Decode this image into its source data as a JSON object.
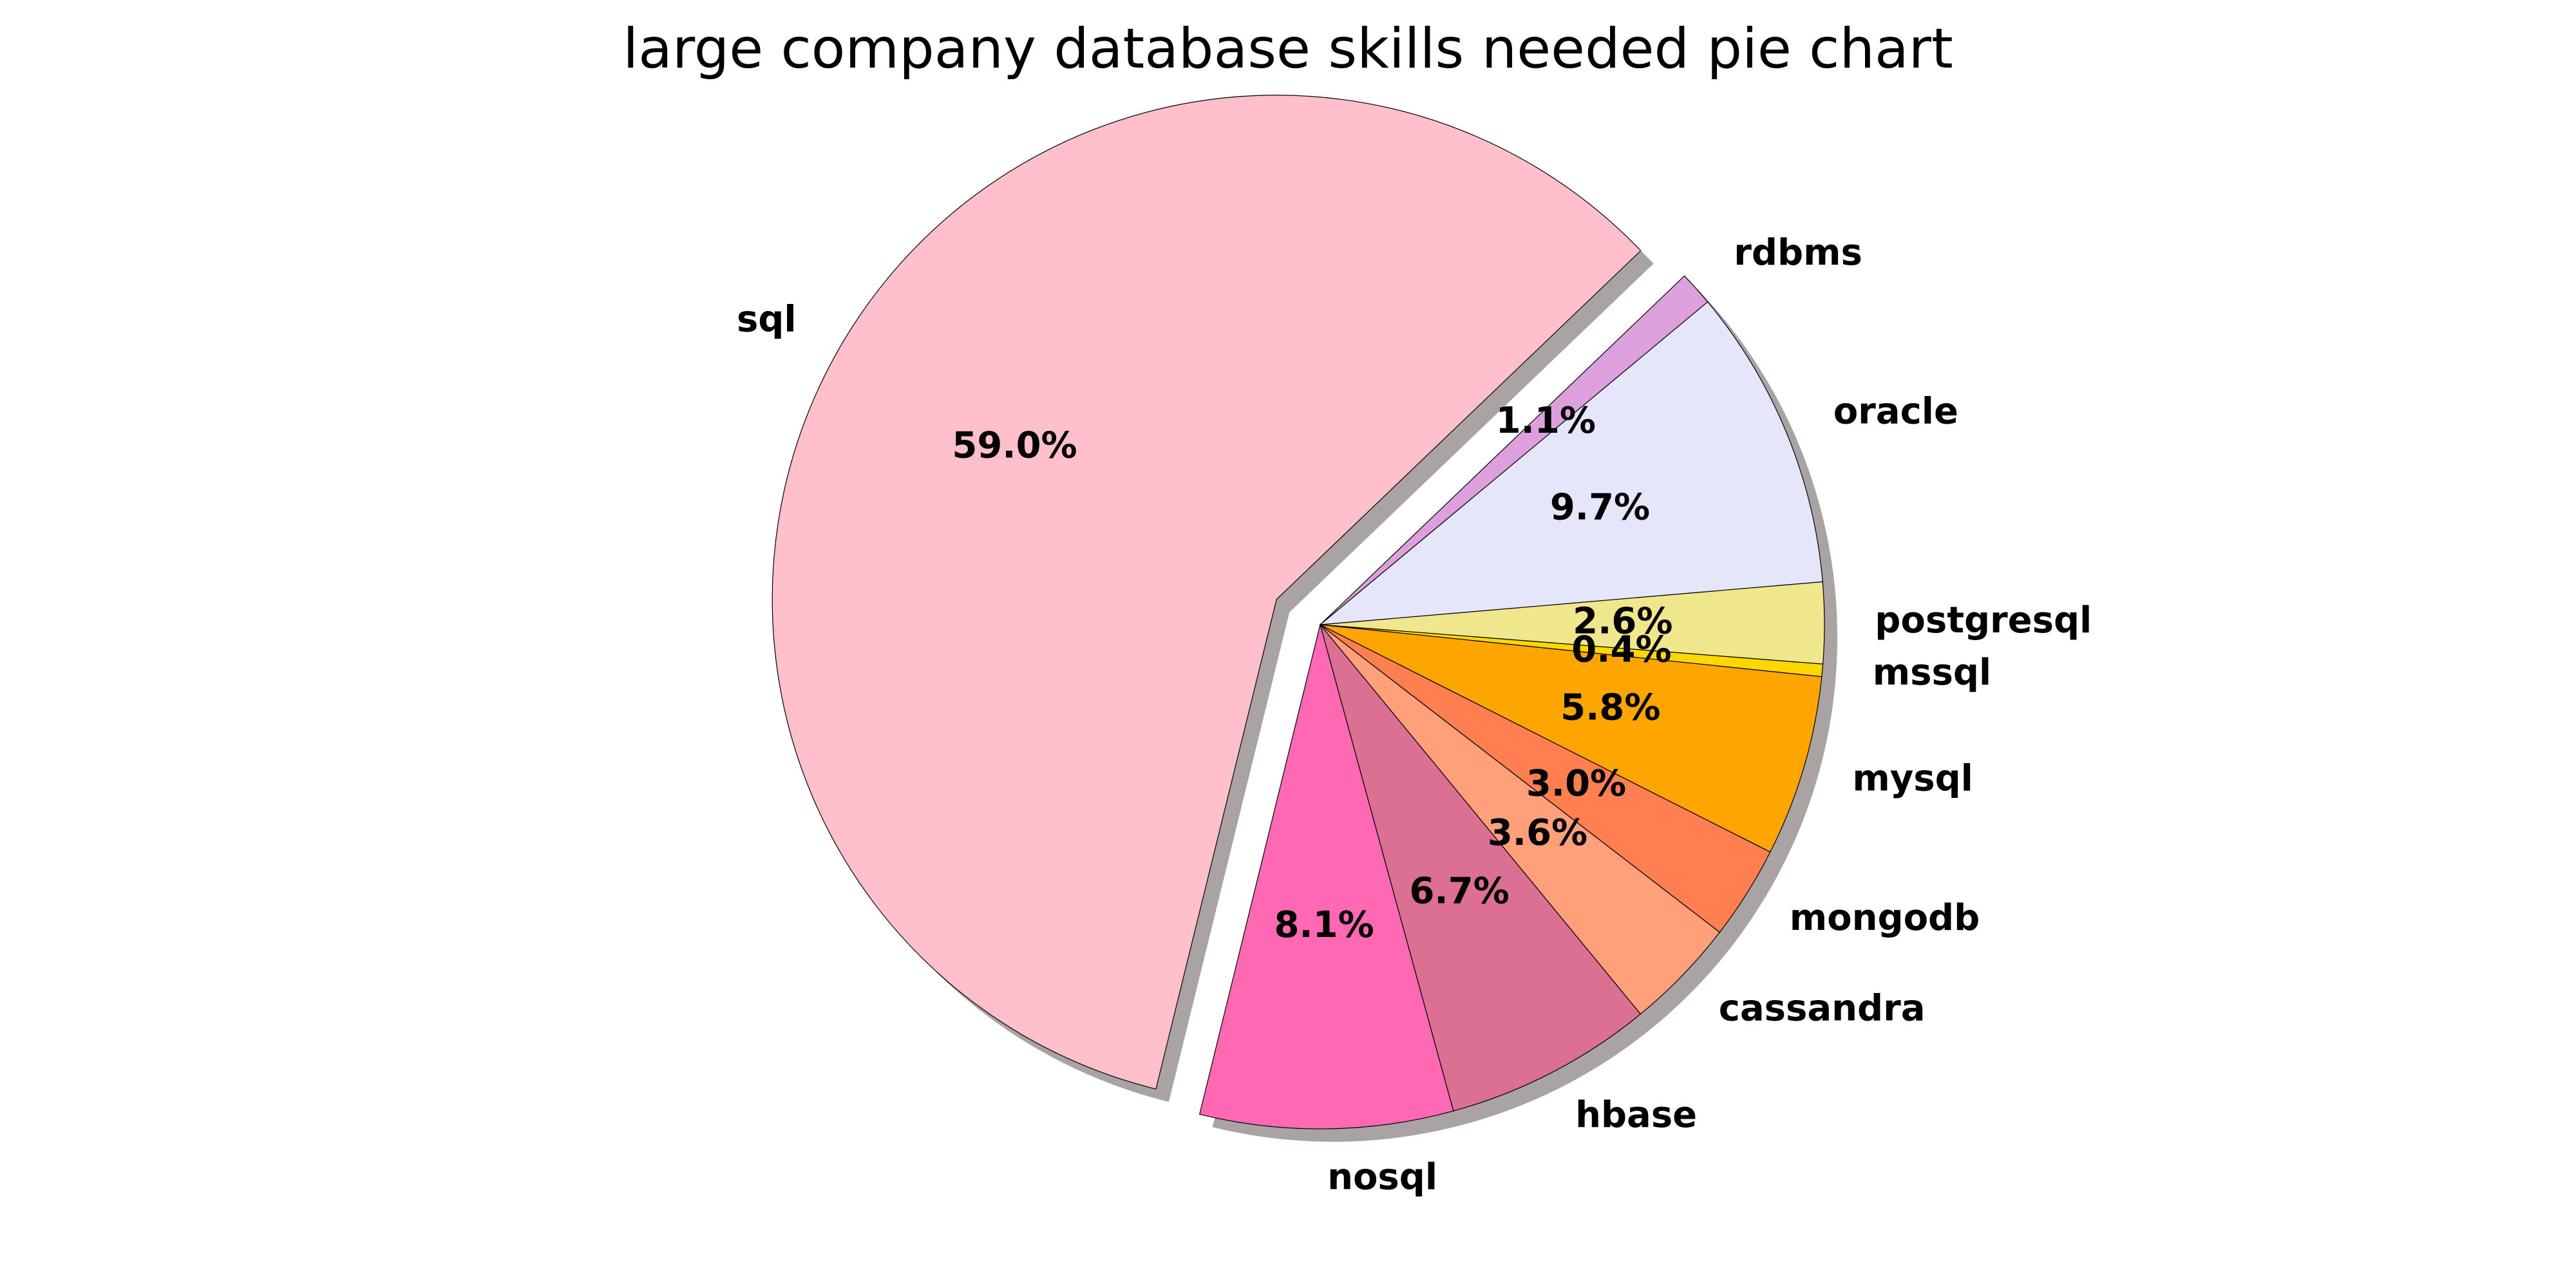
{
  "chart_data": {
    "type": "pie",
    "title": "large company database skills needed pie chart",
    "slices": [
      {
        "label": "sql",
        "percent": "59.0%",
        "value": 59.0,
        "color": "#FFC0CB",
        "explode": true
      },
      {
        "label": "nosql",
        "percent": "8.1%",
        "value": 8.1,
        "color": "#FF69B4",
        "explode": false
      },
      {
        "label": "hbase",
        "percent": "6.7%",
        "value": 6.7,
        "color": "#DB7093",
        "explode": false
      },
      {
        "label": "cassandra",
        "percent": "3.6%",
        "value": 3.6,
        "color": "#FFA07A",
        "explode": false
      },
      {
        "label": "mongodb",
        "percent": "3.0%",
        "value": 3.0,
        "color": "#FF7F50",
        "explode": false
      },
      {
        "label": "mysql",
        "percent": "5.8%",
        "value": 5.8,
        "color": "#FFA500",
        "explode": false
      },
      {
        "label": "mssql",
        "percent": "0.4%",
        "value": 0.4,
        "color": "#FFD700",
        "explode": false
      },
      {
        "label": "postgresql",
        "percent": "2.6%",
        "value": 2.6,
        "color": "#F0E68C",
        "explode": false
      },
      {
        "label": "oracle",
        "percent": "9.7%",
        "value": 9.7,
        "color": "#E6E6FA",
        "explode": false
      },
      {
        "label": "rdbms",
        "percent": "1.1%",
        "value": 1.1,
        "color": "#DDA0DD",
        "explode": false
      }
    ],
    "shadow": true,
    "shadow_color": "#A9A3A4",
    "edge_color": "#000000"
  }
}
